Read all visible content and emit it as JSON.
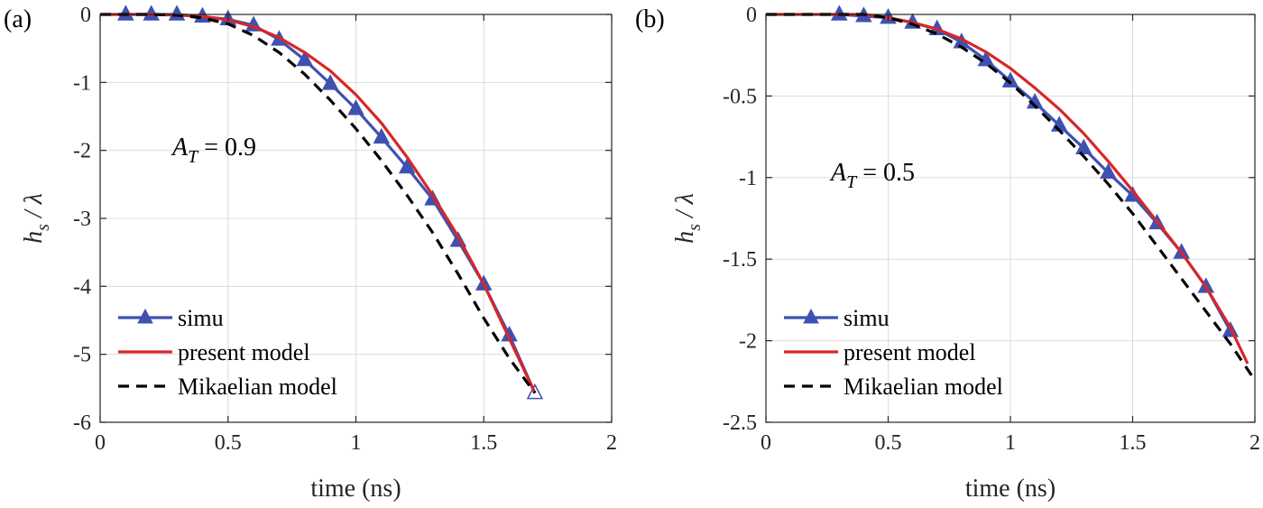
{
  "chart_data": [
    {
      "type": "line",
      "panel_label": "(a)",
      "xlabel": "time (ns)",
      "ylabel_main": "h",
      "ylabel_sub": "s",
      "ylabel_rest": " / λ",
      "xlim": [
        0,
        2
      ],
      "ylim": [
        -6,
        0
      ],
      "xticks": [
        0,
        0.5,
        1,
        1.5,
        2
      ],
      "xtick_labels": [
        "0",
        "0.5",
        "1",
        "1.5",
        "2"
      ],
      "yticks": [
        0,
        -1,
        -2,
        -3,
        -4,
        -5,
        -6
      ],
      "ytick_labels": [
        "0",
        "-1",
        "-2",
        "-3",
        "-4",
        "-5",
        "-6"
      ],
      "grid": true,
      "legend_position": "bottom-left",
      "annotation": {
        "main": "A",
        "sub": "T",
        "rest": " = 0.9"
      },
      "series": [
        {
          "name": "simu",
          "color": "#3f51b0",
          "style": "solid-triangle",
          "x": [
            0.1,
            0.2,
            0.3,
            0.4,
            0.5,
            0.6,
            0.7,
            0.8,
            0.9,
            1.0,
            1.1,
            1.2,
            1.3,
            1.4,
            1.5,
            1.6,
            1.7
          ],
          "y": [
            0,
            0,
            0,
            -0.03,
            -0.07,
            -0.16,
            -0.37,
            -0.67,
            -1.02,
            -1.39,
            -1.81,
            -2.25,
            -2.72,
            -3.33,
            -3.97,
            -4.72,
            -5.57
          ]
        },
        {
          "name": "present model",
          "color": "#d62728",
          "style": "solid",
          "x": [
            0,
            0.1,
            0.2,
            0.3,
            0.4,
            0.5,
            0.6,
            0.7,
            0.8,
            0.9,
            1.0,
            1.1,
            1.2,
            1.3,
            1.4,
            1.5,
            1.6,
            1.7
          ],
          "y": [
            0,
            0,
            0,
            -0.01,
            -0.03,
            -0.08,
            -0.18,
            -0.34,
            -0.56,
            -0.83,
            -1.18,
            -1.6,
            -2.1,
            -2.66,
            -3.27,
            -3.97,
            -4.77,
            -5.57
          ]
        },
        {
          "name": "Mikaelian model",
          "color": "#000000",
          "style": "dashed",
          "x": [
            0,
            0.1,
            0.2,
            0.3,
            0.4,
            0.5,
            0.6,
            0.7,
            0.8,
            0.9,
            1.0,
            1.1,
            1.2,
            1.3,
            1.4,
            1.5,
            1.6,
            1.7
          ],
          "y": [
            0,
            0,
            0,
            -0.01,
            -0.05,
            -0.14,
            -0.31,
            -0.56,
            -0.88,
            -1.26,
            -1.68,
            -2.15,
            -2.66,
            -3.21,
            -3.82,
            -4.47,
            -5.06,
            -5.57
          ]
        }
      ]
    },
    {
      "type": "line",
      "panel_label": "(b)",
      "xlabel": "time (ns)",
      "ylabel_main": "h",
      "ylabel_sub": "s",
      "ylabel_rest": " / λ",
      "xlim": [
        0,
        2
      ],
      "ylim": [
        -2.5,
        0
      ],
      "xticks": [
        0,
        0.5,
        1,
        1.5,
        2
      ],
      "xtick_labels": [
        "0",
        "0.5",
        "1",
        "1.5",
        "2"
      ],
      "yticks": [
        0,
        -0.5,
        -1,
        -1.5,
        -2,
        -2.5
      ],
      "ytick_labels": [
        "0",
        "-0.5",
        "-1",
        "-1.5",
        "-2",
        "-2.5"
      ],
      "grid": true,
      "legend_position": "bottom-left",
      "annotation": {
        "main": "A",
        "sub": "T",
        "rest": " = 0.5"
      },
      "series": [
        {
          "name": "simu",
          "color": "#3f51b0",
          "style": "solid-triangle",
          "x": [
            0.3,
            0.4,
            0.5,
            0.6,
            0.7,
            0.8,
            0.9,
            1.0,
            1.1,
            1.2,
            1.3,
            1.4,
            1.5,
            1.6,
            1.7,
            1.8,
            1.9
          ],
          "y": [
            0,
            -0.01,
            -0.02,
            -0.05,
            -0.09,
            -0.17,
            -0.28,
            -0.41,
            -0.54,
            -0.68,
            -0.82,
            -0.97,
            -1.11,
            -1.28,
            -1.46,
            -1.67,
            -1.94
          ]
        },
        {
          "name": "present model",
          "color": "#d62728",
          "style": "solid",
          "x": [
            0,
            0.1,
            0.2,
            0.3,
            0.4,
            0.5,
            0.6,
            0.7,
            0.8,
            0.9,
            1.0,
            1.1,
            1.2,
            1.3,
            1.4,
            1.5,
            1.6,
            1.7,
            1.8,
            1.9,
            1.97
          ],
          "y": [
            0,
            0,
            0,
            0,
            0,
            -0.02,
            -0.05,
            -0.09,
            -0.15,
            -0.23,
            -0.33,
            -0.45,
            -0.58,
            -0.73,
            -0.9,
            -1.08,
            -1.27,
            -1.46,
            -1.67,
            -1.92,
            -2.14
          ]
        },
        {
          "name": "Mikaelian model",
          "color": "#000000",
          "style": "dashed",
          "x": [
            0,
            0.1,
            0.2,
            0.3,
            0.4,
            0.5,
            0.6,
            0.7,
            0.8,
            0.9,
            1.0,
            1.1,
            1.2,
            1.3,
            1.4,
            1.5,
            1.6,
            1.7,
            1.8,
            1.9,
            1.99
          ],
          "y": [
            0,
            0,
            0,
            0,
            0,
            -0.02,
            -0.06,
            -0.12,
            -0.2,
            -0.3,
            -0.42,
            -0.56,
            -0.71,
            -0.87,
            -1.04,
            -1.22,
            -1.42,
            -1.62,
            -1.82,
            -2.02,
            -2.22
          ]
        }
      ]
    }
  ]
}
